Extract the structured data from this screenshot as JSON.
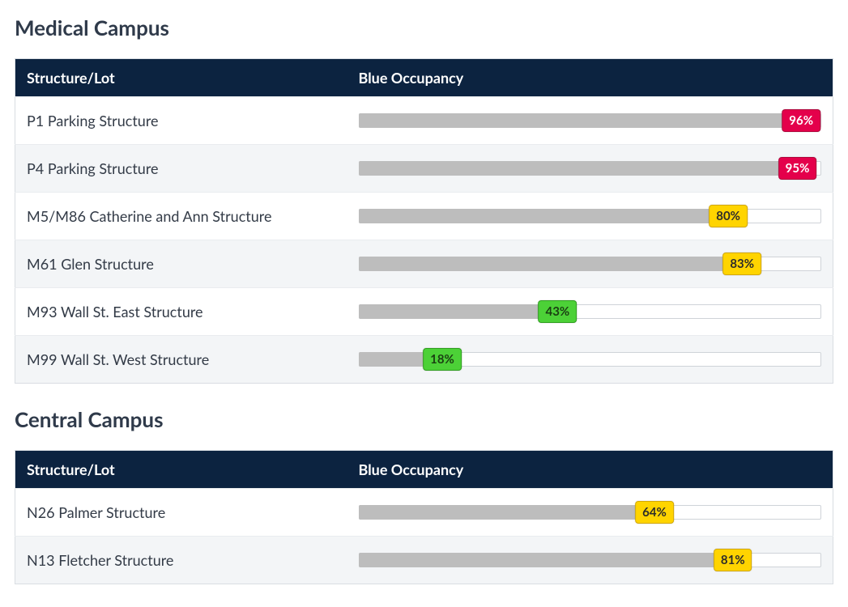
{
  "thresholds": {
    "red_min": 90,
    "yellow_min": 50
  },
  "colors": {
    "header_bg": "#0c2340",
    "header_text": "#ffffff",
    "row_alt_bg": "#f3f5f7",
    "bar_fill": "#bdbdbd",
    "bar_track_bg": "#ffffff",
    "bar_track_border": "#cfd3d8",
    "badge_red_bg": "#e4004b",
    "badge_red_text": "#ffffff",
    "badge_yellow_bg": "#ffd400",
    "badge_yellow_text": "#2b2b2b",
    "badge_green_bg": "#4cd137",
    "badge_green_text": "#1a3e12"
  },
  "columns": {
    "structure": "Structure/Lot",
    "occupancy": "Blue Occupancy"
  },
  "sections": [
    {
      "id": "medical",
      "title": "Medical Campus",
      "rows": [
        {
          "name": "P1 Parking Structure",
          "pct": 96
        },
        {
          "name": "P4 Parking Structure",
          "pct": 95
        },
        {
          "name": "M5/M86 Catherine and Ann Structure",
          "pct": 80
        },
        {
          "name": "M61 Glen Structure",
          "pct": 83
        },
        {
          "name": "M93 Wall St. East Structure",
          "pct": 43
        },
        {
          "name": "M99 Wall St. West Structure",
          "pct": 18
        }
      ]
    },
    {
      "id": "central",
      "title": "Central Campus",
      "rows": [
        {
          "name": "N26 Palmer Structure",
          "pct": 64
        },
        {
          "name": "N13 Fletcher Structure",
          "pct": 81
        }
      ]
    }
  ]
}
